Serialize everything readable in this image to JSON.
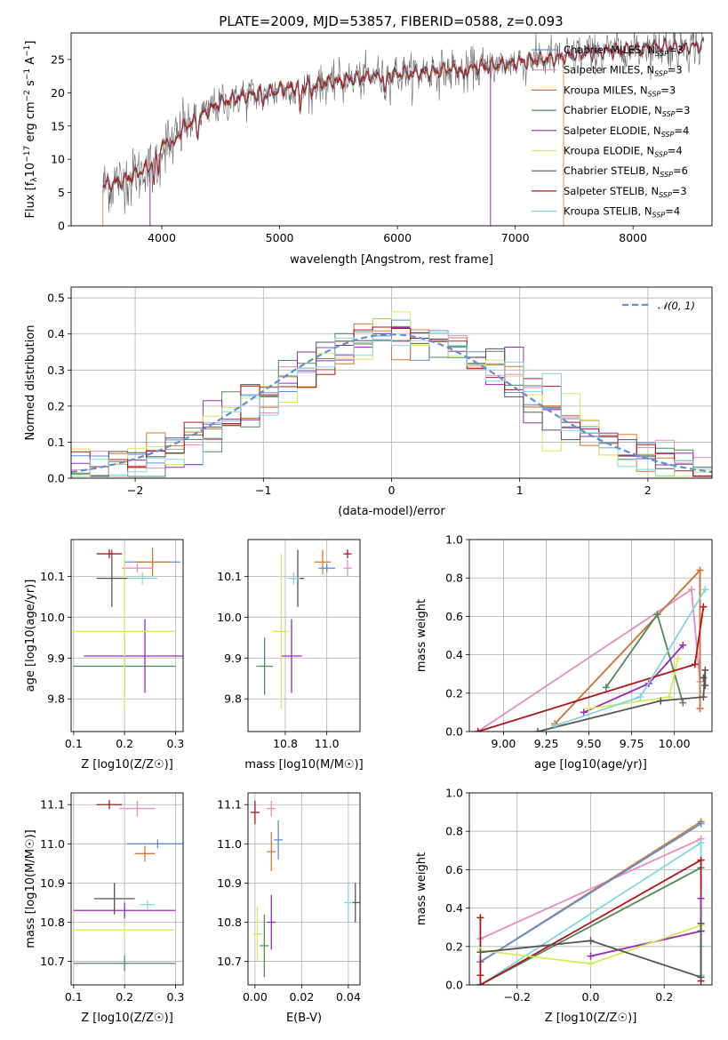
{
  "figure": {
    "title": "PLATE=2009, MJD=53857, FIBERID=0588, z=0.093"
  },
  "colors": {
    "Chabrier MILES": "#5b8fd8",
    "Salpeter MILES": "#e98ac4",
    "Kroupa MILES": "#d6782e",
    "Chabrier ELODIE": "#4f8a5a",
    "Salpeter ELODIE": "#9a2ab8",
    "Kroupa ELODIE": "#d8e85a",
    "Chabrier STELIB": "#555555",
    "Salpeter STELIB": "#b01616",
    "Kroupa STELIB": "#7fd7df"
  },
  "chart_data": [
    {
      "id": "spectrum",
      "type": "line",
      "xlabel": "wavelength [Angstrom, rest frame]",
      "ylabel": "Flux [f_λ 10^-17 erg cm^-2 s^-1 A^-1]",
      "xlim": [
        3230,
        8670
      ],
      "ylim": [
        0,
        29
      ],
      "xticks": [
        4000,
        5000,
        6000,
        7000,
        8000
      ],
      "yticks": [
        0,
        5,
        10,
        15,
        20,
        25
      ],
      "legend": "top-right",
      "series": [
        {
          "name": "Chabrier MILES",
          "nssp": "3"
        },
        {
          "name": "Salpeter MILES",
          "nssp": "3"
        },
        {
          "name": "Kroupa MILES",
          "nssp": "3"
        },
        {
          "name": "Chabrier ELODIE",
          "nssp": "3"
        },
        {
          "name": "Salpeter ELODIE",
          "nssp": "4"
        },
        {
          "name": "Kroupa ELODIE",
          "nssp": "4"
        },
        {
          "name": "Chabrier STELIB",
          "nssp": "6"
        },
        {
          "name": "Salpeter STELIB",
          "nssp": "3"
        },
        {
          "name": "Kroupa STELIB",
          "nssp": "4"
        }
      ],
      "continuum_points": [
        [
          3500,
          6
        ],
        [
          3600,
          6.5
        ],
        [
          3700,
          7
        ],
        [
          3800,
          8
        ],
        [
          3900,
          9
        ],
        [
          3950,
          11
        ],
        [
          4000,
          12
        ],
        [
          4100,
          13
        ],
        [
          4200,
          15
        ],
        [
          4300,
          16
        ],
        [
          4400,
          17.5
        ],
        [
          4500,
          18.5
        ],
        [
          4700,
          19.5
        ],
        [
          4900,
          20
        ],
        [
          5000,
          20.5
        ],
        [
          5200,
          21
        ],
        [
          5400,
          21.5
        ],
        [
          5600,
          22
        ],
        [
          5800,
          22.5
        ],
        [
          6000,
          22.8
        ],
        [
          6200,
          23
        ],
        [
          6500,
          23.5
        ],
        [
          6800,
          24
        ],
        [
          7000,
          24.5
        ],
        [
          7200,
          25
        ],
        [
          7400,
          25.3
        ],
        [
          7600,
          26
        ],
        [
          7800,
          26.3
        ],
        [
          8000,
          26.5
        ],
        [
          8200,
          27
        ],
        [
          8400,
          26.8
        ],
        [
          8600,
          27.2
        ]
      ]
    },
    {
      "id": "residuals",
      "type": "line",
      "xlabel": "(data-model)/error",
      "ylabel": "Normed distribution",
      "xlim": [
        -2.5,
        2.5
      ],
      "ylim": [
        0,
        0.53
      ],
      "xticks": [
        -2,
        -1,
        0,
        1,
        2
      ],
      "yticks": [
        0.0,
        0.1,
        0.2,
        0.3,
        0.4,
        0.5
      ],
      "legend": "top-right",
      "reference": {
        "name": "N(0,1)",
        "mean": 0,
        "sd": 1
      }
    },
    {
      "id": "age-vs-Z",
      "type": "scatter",
      "xlabel": "Z [log10(Z/Z☉)]",
      "ylabel": "age [log10(age/yr)]",
      "xlim": [
        0.095,
        0.315
      ],
      "ylim": [
        9.72,
        10.19
      ],
      "xticks": [
        0.1,
        0.2,
        0.3
      ],
      "yticks": [
        9.8,
        9.9,
        10.0,
        10.1
      ],
      "points": [
        {
          "s": "Chabrier MILES",
          "x": 0.255,
          "y": 10.135,
          "xe": 0.055,
          "ye": 0.0
        },
        {
          "s": "Salpeter MILES",
          "x": 0.225,
          "y": 10.12,
          "xe": 0.03,
          "ye": 0.0
        },
        {
          "s": "Kroupa MILES",
          "x": 0.255,
          "y": 10.135,
          "xe": 0.035,
          "ye": 0.035
        },
        {
          "s": "Chabrier ELODIE",
          "x": 0.2,
          "y": 9.88,
          "xe": 0.1,
          "ye": 0.07
        },
        {
          "s": "Salpeter ELODIE",
          "x": 0.24,
          "y": 9.905,
          "xe": 0.12,
          "ye": 0.09
        },
        {
          "s": "Kroupa ELODIE",
          "x": 0.2,
          "y": 9.965,
          "xe": 0.1,
          "ye": 0.19
        },
        {
          "s": "Chabrier STELIB",
          "x": 0.175,
          "y": 10.095,
          "xe": 0.03,
          "ye": 0.07
        },
        {
          "s": "Salpeter STELIB",
          "x": 0.17,
          "y": 10.155,
          "xe": 0.025,
          "ye": 0.0
        },
        {
          "s": "Kroupa STELIB",
          "x": 0.235,
          "y": 10.095,
          "xe": 0.03,
          "ye": 0.015
        }
      ]
    },
    {
      "id": "age-vs-mass",
      "type": "scatter",
      "xlabel": "mass [log10(M/M☉)]",
      "ylabel": "",
      "xlim": [
        10.62,
        11.16
      ],
      "ylim": [
        9.72,
        10.19
      ],
      "xticks": [
        10.8,
        11.0
      ],
      "yticks": [
        9.8,
        9.9,
        10.0,
        10.1
      ],
      "points": [
        {
          "s": "Chabrier MILES",
          "x": 11.0,
          "y": 10.12,
          "xe": 0.04,
          "ye": 0.0
        },
        {
          "s": "Salpeter MILES",
          "x": 11.1,
          "y": 10.12,
          "xe": 0.02,
          "ye": 0.02
        },
        {
          "s": "Kroupa MILES",
          "x": 10.98,
          "y": 10.135,
          "xe": 0.04,
          "ye": 0.03
        },
        {
          "s": "Chabrier ELODIE",
          "x": 10.7,
          "y": 9.88,
          "xe": 0.04,
          "ye": 0.07
        },
        {
          "s": "Salpeter ELODIE",
          "x": 10.83,
          "y": 9.905,
          "xe": 0.05,
          "ye": 0.09
        },
        {
          "s": "Kroupa ELODIE",
          "x": 10.78,
          "y": 9.965,
          "xe": 0.04,
          "ye": 0.19
        },
        {
          "s": "Chabrier STELIB",
          "x": 10.86,
          "y": 10.095,
          "xe": 0.03,
          "ye": 0.07
        },
        {
          "s": "Salpeter STELIB",
          "x": 11.1,
          "y": 10.155,
          "xe": 0.02,
          "ye": 0.0
        },
        {
          "s": "Kroupa STELIB",
          "x": 10.84,
          "y": 10.095,
          "xe": 0.03,
          "ye": 0.015
        }
      ]
    },
    {
      "id": "massweight-vs-age",
      "type": "line",
      "xlabel": "age [log10(age/yr)]",
      "ylabel": "mass weight",
      "xlim": [
        8.8,
        10.22
      ],
      "ylim": [
        0,
        1.0
      ],
      "xticks": [
        9.0,
        9.25,
        9.5,
        9.75,
        10.0
      ],
      "yticks": [
        0.0,
        0.2,
        0.4,
        0.6,
        0.8,
        1.0
      ],
      "series": [
        {
          "name": "Salpeter MILES",
          "x": [
            8.85,
            10.1,
            10.15
          ],
          "y": [
            0.0,
            0.74,
            0.26
          ]
        },
        {
          "name": "Chabrier MILES",
          "x": [
            9.3,
            10.15,
            10.15
          ],
          "y": [
            0.04,
            0.84,
            0.12
          ]
        },
        {
          "name": "Kroupa MILES",
          "x": [
            9.3,
            10.15,
            10.15
          ],
          "y": [
            0.04,
            0.84,
            0.12
          ]
        },
        {
          "name": "Chabrier ELODIE",
          "x": [
            9.6,
            9.9,
            10.05
          ],
          "y": [
            0.23,
            0.61,
            0.15
          ]
        },
        {
          "name": "Salpeter ELODIE",
          "x": [
            9.47,
            9.85,
            10.05
          ],
          "y": [
            0.1,
            0.25,
            0.45
          ]
        },
        {
          "name": "Kroupa ELODIE",
          "x": [
            9.5,
            9.97,
            10.02
          ],
          "y": [
            0.12,
            0.18,
            0.38
          ]
        },
        {
          "name": "Chabrier STELIB",
          "x": [
            9.2,
            9.92,
            10.17,
            10.18,
            10.18,
            10.17
          ],
          "y": [
            0.0,
            0.16,
            0.18,
            0.32,
            0.24,
            0.28
          ]
        },
        {
          "name": "Salpeter STELIB",
          "x": [
            8.85,
            10.12,
            10.17
          ],
          "y": [
            0.0,
            0.35,
            0.65
          ]
        },
        {
          "name": "Kroupa STELIB",
          "x": [
            9.3,
            9.8,
            10.18
          ],
          "y": [
            0.03,
            0.18,
            0.74
          ]
        }
      ]
    },
    {
      "id": "mass-vs-Z",
      "type": "scatter",
      "xlabel": "Z [log10(Z/Z☉)]",
      "ylabel": "mass [log10(M/M☉)]",
      "xlim": [
        0.095,
        0.315
      ],
      "ylim": [
        10.64,
        11.13
      ],
      "xticks": [
        0.1,
        0.2,
        0.3
      ],
      "yticks": [
        10.7,
        10.8,
        10.9,
        11.0,
        11.1
      ],
      "points": [
        {
          "s": "Chabrier MILES",
          "x": 0.265,
          "y": 11.0,
          "xe": 0.06,
          "ye": 0.0
        },
        {
          "s": "Salpeter MILES",
          "x": 0.225,
          "y": 11.09,
          "xe": 0.035,
          "ye": 0.02
        },
        {
          "s": "Kroupa MILES",
          "x": 0.24,
          "y": 10.975,
          "xe": 0.02,
          "ye": 0.02
        },
        {
          "s": "Chabrier ELODIE",
          "x": 0.2,
          "y": 10.695,
          "xe": 0.1,
          "ye": 0.02
        },
        {
          "s": "Salpeter ELODIE",
          "x": 0.2,
          "y": 10.83,
          "xe": 0.1,
          "ye": 0.02
        },
        {
          "s": "Kroupa ELODIE",
          "x": 0.2,
          "y": 10.78,
          "xe": 0.1,
          "ye": 0.02
        },
        {
          "s": "Chabrier STELIB",
          "x": 0.18,
          "y": 10.86,
          "xe": 0.04,
          "ye": 0.04
        },
        {
          "s": "Salpeter STELIB",
          "x": 0.17,
          "y": 11.1,
          "xe": 0.025,
          "ye": 0.0
        },
        {
          "s": "Kroupa STELIB",
          "x": 0.245,
          "y": 10.845,
          "xe": 0.015,
          "ye": 0.0
        }
      ]
    },
    {
      "id": "mass-vs-EBV",
      "type": "scatter",
      "xlabel": "E(B-V)",
      "ylabel": "",
      "xlim": [
        -0.003,
        0.045
      ],
      "ylim": [
        10.64,
        11.13
      ],
      "xticks": [
        0.0,
        0.02,
        0.04
      ],
      "yticks": [
        10.7,
        10.8,
        10.9,
        11.0,
        11.1
      ],
      "points": [
        {
          "s": "Chabrier MILES",
          "x": 0.01,
          "y": 11.01,
          "ye": 0.05
        },
        {
          "s": "Salpeter MILES",
          "x": 0.007,
          "y": 11.09,
          "ye": 0.02
        },
        {
          "s": "Kroupa MILES",
          "x": 0.007,
          "y": 10.98,
          "ye": 0.05
        },
        {
          "s": "Chabrier ELODIE",
          "x": 0.004,
          "y": 10.74,
          "ye": 0.08
        },
        {
          "s": "Salpeter ELODIE",
          "x": 0.007,
          "y": 10.8,
          "ye": 0.07
        },
        {
          "s": "Kroupa ELODIE",
          "x": 0.001,
          "y": 10.77,
          "ye": 0.07
        },
        {
          "s": "Chabrier STELIB",
          "x": 0.043,
          "y": 10.85,
          "ye": 0.05
        },
        {
          "s": "Salpeter STELIB",
          "x": 0.0,
          "y": 11.08,
          "ye": 0.03
        },
        {
          "s": "Kroupa STELIB",
          "x": 0.04,
          "y": 10.85,
          "ye": 0.05
        }
      ]
    },
    {
      "id": "massweight-vs-Z",
      "type": "line",
      "xlabel": "Z [log10(Z/Z☉)]",
      "ylabel": "mass weight",
      "xlim": [
        -0.33,
        0.33
      ],
      "ylim": [
        0,
        1.0
      ],
      "xticks": [
        -0.2,
        0.0,
        0.2
      ],
      "yticks": [
        0.0,
        0.2,
        0.4,
        0.6,
        0.8,
        1.0
      ],
      "series": [
        {
          "name": "Salpeter MILES",
          "x": [
            -0.3,
            0.3
          ],
          "y": [
            0.24,
            0.76
          ]
        },
        {
          "name": "Kroupa MILES",
          "x": [
            -0.3,
            0.3
          ],
          "y": [
            0.12,
            0.85
          ]
        },
        {
          "name": "Chabrier MILES",
          "x": [
            -0.3,
            0.3
          ],
          "y": [
            0.12,
            0.84
          ]
        },
        {
          "name": "Kroupa STELIB",
          "x": [
            -0.3,
            0.3,
            0.3,
            0.3
          ],
          "y": [
            0.0,
            0.74,
            0.05,
            0.2
          ]
        },
        {
          "name": "Chabrier ELODIE",
          "x": [
            -0.3,
            0.3
          ],
          "y": [
            0.0,
            0.61
          ]
        },
        {
          "name": "Salpeter STELIB",
          "x": [
            -0.3,
            -0.3,
            -0.3,
            0.3,
            0.3
          ],
          "y": [
            0.35,
            0.05,
            0.0,
            0.65,
            0.02
          ]
        },
        {
          "name": "Salpeter ELODIE",
          "x": [
            0.0,
            0.3,
            0.3
          ],
          "y": [
            0.15,
            0.28,
            0.45
          ]
        },
        {
          "name": "Kroupa ELODIE",
          "x": [
            -0.3,
            0.0,
            0.3
          ],
          "y": [
            0.18,
            0.11,
            0.31
          ]
        },
        {
          "name": "Chabrier STELIB",
          "x": [
            -0.3,
            0.0,
            0.3,
            0.3,
            0.3
          ],
          "y": [
            0.17,
            0.23,
            0.04,
            0.28,
            0.32
          ]
        }
      ]
    }
  ]
}
